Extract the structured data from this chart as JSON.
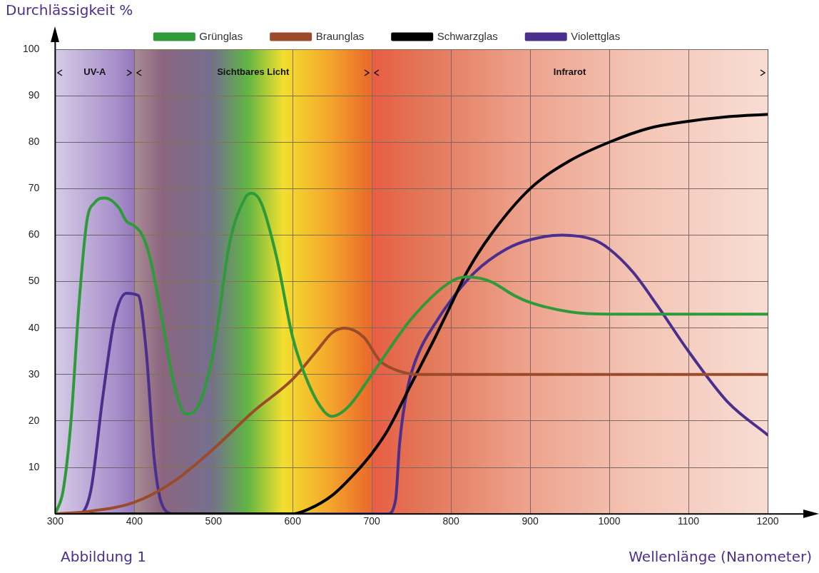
{
  "chart_data": {
    "type": "line",
    "ylabel": "Durchlässigkeit %",
    "xlabel": "Wellenlänge (Nanometer)",
    "annotations": [
      "Abbildung 1"
    ],
    "xlim": [
      300,
      1200
    ],
    "xticks": [
      300,
      400,
      500,
      600,
      700,
      800,
      900,
      1000,
      1100,
      1200
    ],
    "ylim": [
      0,
      100
    ],
    "yticks": [
      {
        "value": 0,
        "label": null
      },
      10,
      20,
      30,
      40,
      50,
      60,
      70,
      80,
      90,
      100
    ],
    "grid": true,
    "legend": "top",
    "marker": "none",
    "line_style": "solid",
    "bands": [
      {
        "axis": "x",
        "from": 300,
        "to": 400,
        "label": "UV-A",
        "color": "#a58cc8"
      },
      {
        "axis": "x",
        "from": 400,
        "to": 700,
        "label": "Sichtbares Licht",
        "color": "#f2e030"
      },
      {
        "axis": "x",
        "from": 700,
        "to": 1200,
        "label": "Infrarot",
        "color": "#eda08a"
      }
    ],
    "series": [
      {
        "name": "Grünglas",
        "color": "#2f9a3a",
        "x": [
          300,
          310,
          320,
          330,
          340,
          350,
          363,
          380,
          390,
          400,
          410,
          420,
          435,
          450,
          465,
          480,
          500,
          520,
          540,
          548,
          560,
          580,
          600,
          620,
          640,
          650,
          670,
          700,
          750,
          800,
          820,
          850,
          880,
          900,
          950,
          1000,
          1200
        ],
        "values": [
          0,
          5,
          20,
          45,
          63,
          67,
          68,
          66,
          63,
          62,
          60,
          55,
          42,
          28,
          21.5,
          23,
          35,
          58,
          68,
          69,
          67,
          55,
          38,
          28,
          22,
          21,
          23,
          30,
          42,
          50,
          51,
          50,
          47,
          45.5,
          43.5,
          43,
          43
        ]
      },
      {
        "name": "Braunglas",
        "color": "#9c4b2a",
        "x": [
          300,
          340,
          400,
          450,
          500,
          550,
          600,
          630,
          650,
          665,
          690,
          710,
          730,
          760,
          1200
        ],
        "values": [
          0,
          0.5,
          2.5,
          7,
          14,
          22,
          29,
          35,
          39,
          40,
          38,
          33,
          31,
          30,
          30
        ]
      },
      {
        "name": "Schwarzglas",
        "color": "#000000",
        "x": [
          300,
          600,
          620,
          650,
          680,
          700,
          720,
          750,
          780,
          800,
          820,
          850,
          900,
          950,
          1000,
          1050,
          1100,
          1150,
          1200
        ],
        "values": [
          0,
          0,
          1,
          4,
          9,
          13,
          18,
          28,
          38,
          45,
          52,
          60,
          70,
          76,
          80,
          83,
          84.5,
          85.5,
          86
        ]
      },
      {
        "name": "Violettglas",
        "color": "#4b2f8e",
        "x": [
          300,
          330,
          345,
          360,
          375,
          390,
          405,
          415,
          425,
          435,
          450,
          720,
          730,
          735,
          745,
          760,
          780,
          800,
          830,
          870,
          900,
          940,
          980,
          1000,
          1030,
          1060,
          1100,
          1150,
          1200
        ],
        "values": [
          0,
          0,
          5,
          25,
          42,
          47.5,
          47,
          35,
          12,
          2,
          0,
          0,
          3,
          15,
          27,
          35,
          41,
          46,
          52,
          57,
          59,
          60,
          59,
          57,
          52,
          45,
          35,
          24,
          17
        ]
      }
    ]
  }
}
